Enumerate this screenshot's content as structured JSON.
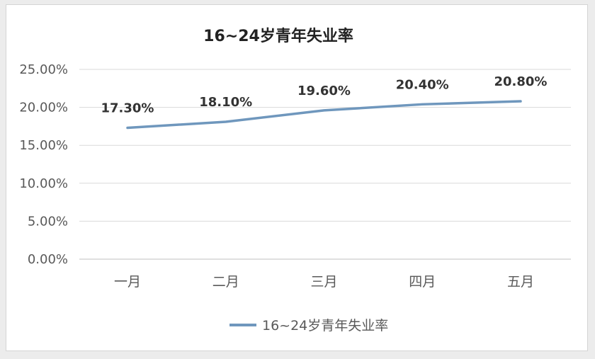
{
  "chart_data": {
    "type": "line",
    "title": "16~24岁青年失业率",
    "categories": [
      "一月",
      "二月",
      "三月",
      "四月",
      "五月"
    ],
    "series": [
      {
        "name": "16~24岁青年失业率",
        "values": [
          17.3,
          18.1,
          19.6,
          20.4,
          20.8
        ],
        "labels": [
          "17.30%",
          "18.10%",
          "19.60%",
          "20.40%",
          "20.80%"
        ],
        "color": "#6f97bd"
      }
    ],
    "ylim": [
      0,
      25
    ],
    "yticks": [
      0,
      5,
      10,
      15,
      20,
      25
    ],
    "ytick_labels": [
      "0.00%",
      "5.00%",
      "10.00%",
      "15.00%",
      "20.00%",
      "25.00%"
    ],
    "xlabel": "",
    "ylabel": "",
    "grid": true,
    "legend_position": "bottom"
  }
}
